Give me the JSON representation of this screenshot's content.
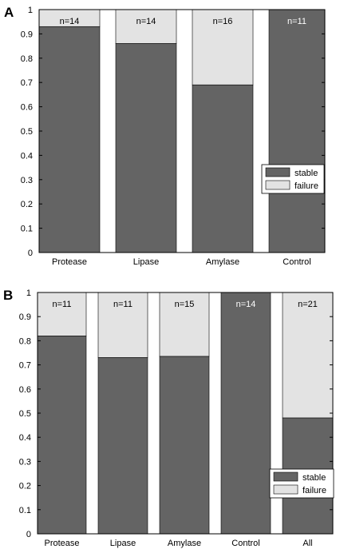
{
  "colors": {
    "stable": "#646464",
    "failure": "#e3e3e3",
    "frame": "#000000",
    "n_on_stable": "#ffffff",
    "n_on_failure": "#000000"
  },
  "chart_data": [
    {
      "panel_label": "A",
      "type": "bar",
      "stacked": true,
      "categories": [
        "Protease",
        "Lipase",
        "Amylase",
        "Control"
      ],
      "series": [
        {
          "name": "stable",
          "values": [
            0.93,
            0.86,
            0.69,
            1.0
          ]
        },
        {
          "name": "failure",
          "values": [
            0.07,
            0.14,
            0.31,
            0.0
          ]
        }
      ],
      "annotations": [
        "n=14",
        "n=14",
        "n=16",
        "n=11"
      ],
      "ylim": [
        0,
        1
      ],
      "yticks": [
        "0",
        "0.1",
        "0.2",
        "0.3",
        "0.4",
        "0.5",
        "0.6",
        "0.7",
        "0.8",
        "0.9",
        "1"
      ],
      "legend_position": "lower-right",
      "grid": false
    },
    {
      "panel_label": "B",
      "type": "bar",
      "stacked": true,
      "categories": [
        "Protease",
        "Lipase",
        "Amylase",
        "Control",
        "All"
      ],
      "series": [
        {
          "name": "stable",
          "values": [
            0.82,
            0.73,
            0.735,
            1.0,
            0.48
          ]
        },
        {
          "name": "failure",
          "values": [
            0.18,
            0.27,
            0.265,
            0.0,
            0.52
          ]
        }
      ],
      "annotations": [
        "n=11",
        "n=11",
        "n=15",
        "n=14",
        "n=21"
      ],
      "ylim": [
        0,
        1
      ],
      "yticks": [
        "0",
        "0.1",
        "0.2",
        "0.3",
        "0.4",
        "0.5",
        "0.6",
        "0.7",
        "0.8",
        "0.9",
        "1"
      ],
      "legend_position": "lower-right",
      "grid": false
    }
  ]
}
